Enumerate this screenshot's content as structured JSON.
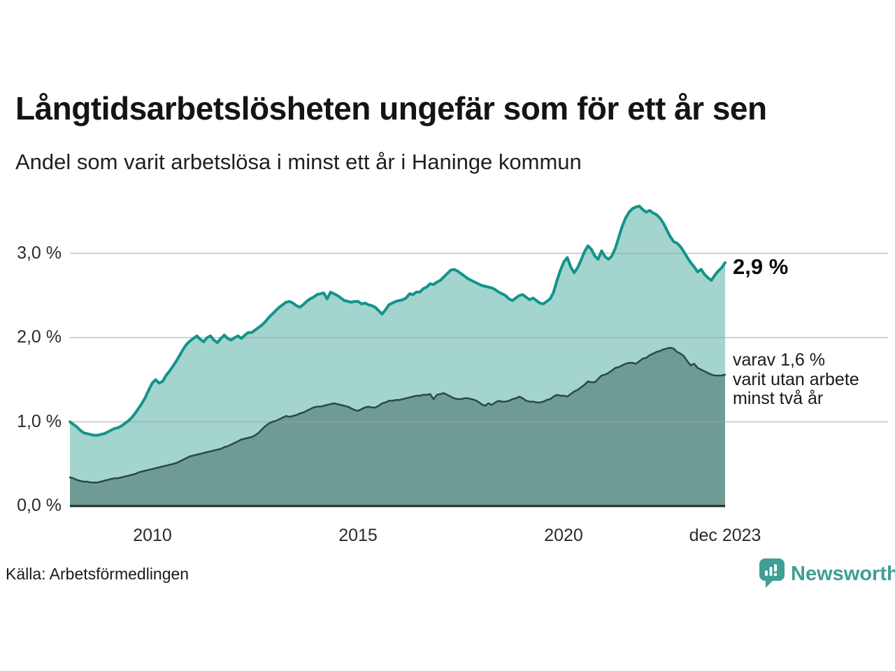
{
  "header": {
    "title": "Långtidsarbetslösheten ungefär som för ett år sen",
    "subtitle": "Andel som varit arbetslösa i minst ett år i Haninge kommun"
  },
  "annotations": {
    "end_value_label": "2,9 %",
    "inner_note": "varav 1,6 %\nvarit utan arbete\nminst två år"
  },
  "footer": {
    "source": "Källa: Arbetsförmedlingen",
    "brand": "Newsworthy"
  },
  "colors": {
    "line_total": "#12948a",
    "fill_total": "#a3d4ce",
    "line_two_years": "#2c4944",
    "fill_two_years": "#6f9b95",
    "gridline": "rgba(160,160,160,0.5)",
    "baseline": "#1c2b28",
    "brand_teal": "#3f9e96",
    "background": "#ffffff"
  },
  "chart_data": {
    "type": "area",
    "title": "Långtidsarbetslösheten ungefär som för ett år sen",
    "subtitle": "Andel som varit arbetslösa i minst ett år i Haninge kommun",
    "source": "Källa: Arbetsförmedlingen",
    "unit": "%",
    "frequency": "monthly",
    "x_start": "2008-01",
    "x_end": "2023-12",
    "ylim": [
      0,
      3.7
    ],
    "grid": "horizontal",
    "legend_position": "inline-right",
    "x_ticks": [
      {
        "label": "2010",
        "index": 24
      },
      {
        "label": "2015",
        "index": 84
      },
      {
        "label": "2020",
        "index": 144
      },
      {
        "label": "dec 2023",
        "index": 191
      }
    ],
    "y_ticks": [
      {
        "label": "0,0 %",
        "value": 0.0
      },
      {
        "label": "1,0 %",
        "value": 1.0
      },
      {
        "label": "2,0 %",
        "value": 2.0
      },
      {
        "label": "3,0 %",
        "value": 3.0
      }
    ],
    "series": [
      {
        "name": "Arbetslösa minst ett år",
        "end_label": "2,9 %",
        "end_value": 2.9,
        "values": [
          1.0,
          0.97,
          0.94,
          0.9,
          0.87,
          0.86,
          0.85,
          0.84,
          0.84,
          0.85,
          0.86,
          0.88,
          0.9,
          0.92,
          0.93,
          0.95,
          0.98,
          1.01,
          1.05,
          1.1,
          1.16,
          1.22,
          1.29,
          1.38,
          1.46,
          1.5,
          1.46,
          1.48,
          1.55,
          1.6,
          1.66,
          1.72,
          1.79,
          1.86,
          1.92,
          1.96,
          1.99,
          2.02,
          1.98,
          1.95,
          2.0,
          2.02,
          1.97,
          1.94,
          1.99,
          2.03,
          1.99,
          1.97,
          2.0,
          2.02,
          1.99,
          2.03,
          2.06,
          2.06,
          2.09,
          2.12,
          2.15,
          2.19,
          2.24,
          2.28,
          2.32,
          2.36,
          2.39,
          2.42,
          2.43,
          2.41,
          2.38,
          2.36,
          2.39,
          2.43,
          2.46,
          2.48,
          2.51,
          2.52,
          2.53,
          2.46,
          2.54,
          2.52,
          2.5,
          2.47,
          2.44,
          2.43,
          2.42,
          2.43,
          2.43,
          2.4,
          2.41,
          2.39,
          2.38,
          2.36,
          2.32,
          2.28,
          2.33,
          2.39,
          2.41,
          2.43,
          2.44,
          2.45,
          2.47,
          2.52,
          2.51,
          2.54,
          2.54,
          2.58,
          2.6,
          2.64,
          2.63,
          2.66,
          2.68,
          2.72,
          2.76,
          2.8,
          2.81,
          2.79,
          2.76,
          2.73,
          2.7,
          2.68,
          2.66,
          2.64,
          2.62,
          2.61,
          2.6,
          2.59,
          2.57,
          2.54,
          2.52,
          2.5,
          2.46,
          2.44,
          2.47,
          2.5,
          2.51,
          2.48,
          2.45,
          2.47,
          2.44,
          2.41,
          2.4,
          2.43,
          2.46,
          2.54,
          2.68,
          2.8,
          2.9,
          2.95,
          2.84,
          2.77,
          2.83,
          2.92,
          3.02,
          3.09,
          3.05,
          2.97,
          2.93,
          3.03,
          2.96,
          2.93,
          2.97,
          3.06,
          3.19,
          3.32,
          3.42,
          3.49,
          3.53,
          3.55,
          3.56,
          3.52,
          3.49,
          3.51,
          3.48,
          3.46,
          3.42,
          3.36,
          3.28,
          3.2,
          3.14,
          3.12,
          3.08,
          3.02,
          2.95,
          2.89,
          2.84,
          2.78,
          2.81,
          2.75,
          2.71,
          2.68,
          2.74,
          2.79,
          2.83,
          2.89
        ]
      },
      {
        "name": "varav arbetslösa minst två år",
        "end_label": "varav 1,6 % varit utan arbete minst två år",
        "end_value": 1.6,
        "values": [
          0.34,
          0.33,
          0.31,
          0.3,
          0.29,
          0.29,
          0.28,
          0.28,
          0.28,
          0.29,
          0.3,
          0.31,
          0.32,
          0.33,
          0.33,
          0.34,
          0.35,
          0.36,
          0.37,
          0.38,
          0.4,
          0.41,
          0.42,
          0.43,
          0.44,
          0.45,
          0.46,
          0.47,
          0.48,
          0.49,
          0.5,
          0.51,
          0.53,
          0.55,
          0.57,
          0.59,
          0.6,
          0.61,
          0.62,
          0.63,
          0.64,
          0.65,
          0.66,
          0.67,
          0.68,
          0.7,
          0.71,
          0.73,
          0.75,
          0.77,
          0.79,
          0.8,
          0.81,
          0.82,
          0.84,
          0.87,
          0.91,
          0.95,
          0.98,
          1.0,
          1.01,
          1.03,
          1.05,
          1.07,
          1.06,
          1.07,
          1.08,
          1.1,
          1.11,
          1.13,
          1.15,
          1.17,
          1.18,
          1.18,
          1.19,
          1.2,
          1.21,
          1.22,
          1.21,
          1.2,
          1.19,
          1.18,
          1.16,
          1.14,
          1.13,
          1.15,
          1.17,
          1.18,
          1.17,
          1.17,
          1.19,
          1.22,
          1.23,
          1.25,
          1.25,
          1.26,
          1.26,
          1.27,
          1.28,
          1.29,
          1.3,
          1.31,
          1.31,
          1.32,
          1.32,
          1.33,
          1.27,
          1.32,
          1.33,
          1.34,
          1.32,
          1.3,
          1.28,
          1.27,
          1.27,
          1.28,
          1.28,
          1.27,
          1.26,
          1.24,
          1.21,
          1.19,
          1.22,
          1.2,
          1.23,
          1.25,
          1.24,
          1.24,
          1.25,
          1.27,
          1.28,
          1.3,
          1.28,
          1.25,
          1.24,
          1.24,
          1.23,
          1.23,
          1.24,
          1.26,
          1.27,
          1.3,
          1.32,
          1.31,
          1.31,
          1.3,
          1.33,
          1.36,
          1.38,
          1.41,
          1.44,
          1.48,
          1.47,
          1.47,
          1.51,
          1.55,
          1.56,
          1.58,
          1.61,
          1.64,
          1.65,
          1.67,
          1.69,
          1.7,
          1.7,
          1.69,
          1.72,
          1.75,
          1.76,
          1.79,
          1.81,
          1.83,
          1.84,
          1.86,
          1.87,
          1.88,
          1.87,
          1.83,
          1.81,
          1.78,
          1.72,
          1.67,
          1.69,
          1.64,
          1.62,
          1.6,
          1.58,
          1.56,
          1.55,
          1.55,
          1.55,
          1.56
        ]
      }
    ]
  }
}
